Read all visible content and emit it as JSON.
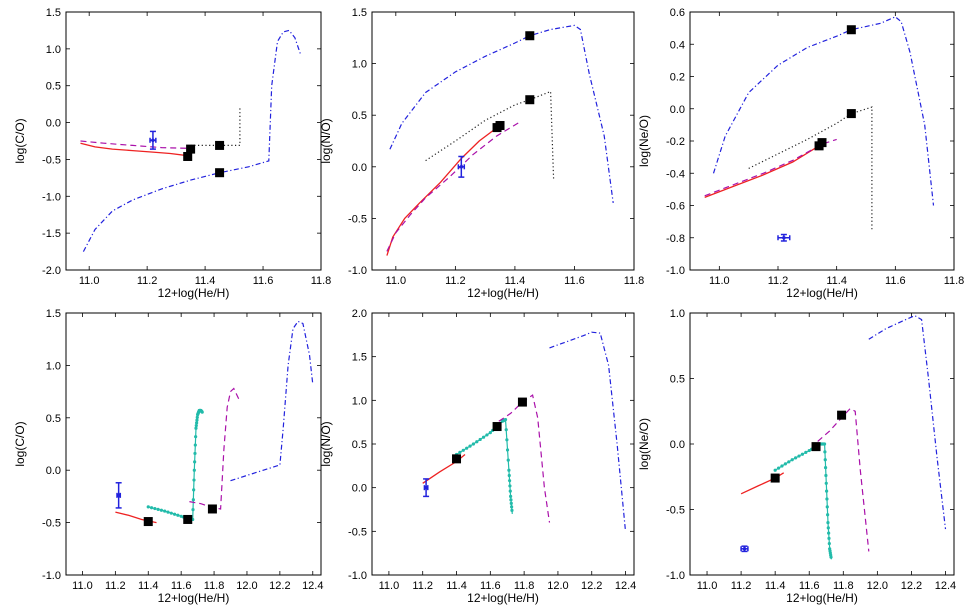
{
  "colors": {
    "solid": "#ee2222",
    "dashed": "#aa11aa",
    "dotted": "#222222",
    "dashdot": "#2222dd",
    "teal": "#22bbaa",
    "marker": "#000000",
    "obs": "#2222dd"
  },
  "chart_data": [
    {
      "type": "line",
      "xlabel": "12+log(He/H)",
      "ylabel": "log(C/O)",
      "xlim": [
        10.92,
        11.8
      ],
      "ylim": [
        -2.0,
        1.5
      ],
      "xticks": [
        "11.0",
        "11.2",
        "11.4",
        "11.6",
        "11.8"
      ],
      "yticks": [
        "-2.0",
        "-1.5",
        "-1.0",
        "-0.5",
        "0.0",
        "0.5",
        "1.0",
        "1.5"
      ],
      "series": [
        {
          "name": "solid",
          "style": "solid",
          "color": "#ee2222",
          "x": [
            10.97,
            11.02,
            11.08,
            11.15,
            11.22,
            11.28,
            11.34
          ],
          "y": [
            -0.28,
            -0.33,
            -0.36,
            -0.38,
            -0.4,
            -0.42,
            -0.45
          ]
        },
        {
          "name": "dashed",
          "style": "dashed",
          "color": "#aa11aa",
          "x": [
            10.97,
            11.05,
            11.15,
            11.25,
            11.35
          ],
          "y": [
            -0.25,
            -0.28,
            -0.31,
            -0.34,
            -0.35
          ]
        },
        {
          "name": "dotted",
          "style": "dotted",
          "color": "#222222",
          "x": [
            11.35,
            11.45,
            11.52,
            11.52,
            11.52
          ],
          "y": [
            -0.31,
            -0.31,
            -0.31,
            -0.05,
            0.2
          ]
        },
        {
          "name": "dashdot",
          "style": "dashdot",
          "color": "#2222dd",
          "x": [
            10.98,
            11.02,
            11.08,
            11.15,
            11.25,
            11.35,
            11.45,
            11.55,
            11.62,
            11.63,
            11.65,
            11.67,
            11.69,
            11.71,
            11.73
          ],
          "y": [
            -1.75,
            -1.45,
            -1.2,
            -1.05,
            -0.9,
            -0.78,
            -0.68,
            -0.6,
            -0.52,
            0.5,
            1.1,
            1.23,
            1.25,
            1.15,
            0.92
          ]
        }
      ],
      "markers": {
        "x": [
          11.34,
          11.35,
          11.45,
          11.45
        ],
        "y": [
          -0.46,
          -0.36,
          -0.31,
          -0.68
        ]
      },
      "observation": {
        "x": 11.22,
        "y": -0.24,
        "xerr": 0.01,
        "yerr": 0.12
      }
    },
    {
      "type": "line",
      "xlabel": "12+log(He/H)",
      "ylabel": "log(N/O)",
      "xlim": [
        10.92,
        11.8
      ],
      "ylim": [
        -1.0,
        1.5
      ],
      "xticks": [
        "11.0",
        "11.2",
        "11.4",
        "11.6",
        "11.8"
      ],
      "yticks": [
        "-1.0",
        "-0.5",
        "0.0",
        "0.5",
        "1.0",
        "1.5"
      ],
      "series": [
        {
          "name": "solid",
          "style": "solid",
          "color": "#ee2222",
          "x": [
            10.97,
            10.99,
            11.03,
            11.08,
            11.15,
            11.22,
            11.28,
            11.34
          ],
          "y": [
            -0.86,
            -0.68,
            -0.5,
            -0.35,
            -0.15,
            0.08,
            0.25,
            0.38
          ]
        },
        {
          "name": "dashed",
          "style": "dashed",
          "color": "#aa11aa",
          "x": [
            10.97,
            11.0,
            11.05,
            11.1,
            11.18,
            11.26,
            11.34,
            11.42
          ],
          "y": [
            -0.82,
            -0.64,
            -0.46,
            -0.3,
            -0.1,
            0.12,
            0.3,
            0.44
          ]
        },
        {
          "name": "dotted",
          "style": "dotted",
          "color": "#222222",
          "x": [
            11.1,
            11.2,
            11.3,
            11.4,
            11.45,
            11.52,
            11.53
          ],
          "y": [
            0.06,
            0.25,
            0.45,
            0.6,
            0.65,
            0.73,
            -0.12
          ]
        },
        {
          "name": "dashdot",
          "style": "dashdot",
          "color": "#2222dd",
          "x": [
            10.98,
            11.02,
            11.1,
            11.2,
            11.3,
            11.4,
            11.45,
            11.52,
            11.6,
            11.62,
            11.65,
            11.7,
            11.73
          ],
          "y": [
            0.17,
            0.42,
            0.72,
            0.92,
            1.07,
            1.2,
            1.27,
            1.33,
            1.37,
            1.33,
            0.9,
            0.3,
            -0.35
          ]
        }
      ],
      "markers": {
        "x": [
          11.34,
          11.35,
          11.45,
          11.45
        ],
        "y": [
          0.38,
          0.4,
          0.65,
          1.27
        ]
      },
      "observation": {
        "x": 11.22,
        "y": 0.0,
        "xerr": 0.01,
        "yerr": 0.1
      }
    },
    {
      "type": "line",
      "xlabel": "12+log(He/H)",
      "ylabel": "log(Ne/O)",
      "xlim": [
        10.9,
        11.8
      ],
      "ylim": [
        -1.0,
        0.6
      ],
      "xticks": [
        "11.0",
        "11.2",
        "11.4",
        "11.6",
        "11.8"
      ],
      "yticks": [
        "-1.0",
        "-0.8",
        "-0.6",
        "-0.4",
        "-0.2",
        "0.0",
        "0.2",
        "0.4",
        "0.6"
      ],
      "series": [
        {
          "name": "solid",
          "style": "solid",
          "color": "#ee2222",
          "x": [
            10.95,
            11.05,
            11.15,
            11.25,
            11.34
          ],
          "y": [
            -0.55,
            -0.48,
            -0.41,
            -0.33,
            -0.23
          ]
        },
        {
          "name": "dashed",
          "style": "dashed",
          "color": "#aa11aa",
          "x": [
            10.95,
            11.05,
            11.15,
            11.25,
            11.35,
            11.4
          ],
          "y": [
            -0.54,
            -0.47,
            -0.4,
            -0.32,
            -0.22,
            -0.19
          ]
        },
        {
          "name": "dotted",
          "style": "dotted",
          "color": "#222222",
          "x": [
            11.1,
            11.2,
            11.3,
            11.4,
            11.45,
            11.52,
            11.52
          ],
          "y": [
            -0.37,
            -0.28,
            -0.19,
            -0.09,
            -0.03,
            0.01,
            -0.76
          ]
        },
        {
          "name": "dashdot",
          "style": "dashdot",
          "color": "#2222dd",
          "x": [
            10.98,
            11.02,
            11.1,
            11.2,
            11.3,
            11.4,
            11.45,
            11.55,
            11.6,
            11.62,
            11.65,
            11.7,
            11.73
          ],
          "y": [
            -0.4,
            -0.17,
            0.1,
            0.27,
            0.38,
            0.45,
            0.49,
            0.53,
            0.57,
            0.54,
            0.35,
            -0.1,
            -0.6
          ]
        }
      ],
      "markers": {
        "x": [
          11.34,
          11.35,
          11.45,
          11.45
        ],
        "y": [
          -0.23,
          -0.21,
          -0.03,
          0.49
        ]
      },
      "observation": {
        "x": 11.22,
        "y": -0.8,
        "xerr": 0.02,
        "yerr": 0.02
      }
    },
    {
      "type": "line",
      "xlabel": "12+log(He/H)",
      "ylabel": "log(C/O)",
      "xlim": [
        10.9,
        12.45
      ],
      "ylim": [
        -1.0,
        1.5
      ],
      "xticks": [
        "11.0",
        "11.2",
        "11.4",
        "11.6",
        "11.8",
        "12.0",
        "12.2",
        "12.4"
      ],
      "yticks": [
        "-1.0",
        "-0.5",
        "0.0",
        "0.5",
        "1.0",
        "1.5"
      ],
      "series": [
        {
          "name": "solid",
          "style": "solid",
          "color": "#ee2222",
          "x": [
            11.2,
            11.28,
            11.36,
            11.45
          ],
          "y": [
            -0.4,
            -0.43,
            -0.47,
            -0.5
          ]
        },
        {
          "name": "teal",
          "style": "dotline",
          "color": "#22bbaa",
          "x": [
            11.4,
            11.5,
            11.6,
            11.67,
            11.68,
            11.69,
            11.7,
            11.71,
            11.72,
            11.73
          ],
          "y": [
            -0.35,
            -0.39,
            -0.44,
            -0.47,
            0.0,
            0.4,
            0.53,
            0.57,
            0.57,
            0.55
          ]
        },
        {
          "name": "dashed",
          "style": "dashed",
          "color": "#aa11aa",
          "x": [
            11.65,
            11.72,
            11.78,
            11.84,
            11.86,
            11.88,
            11.9,
            11.92,
            11.95
          ],
          "y": [
            -0.3,
            -0.32,
            -0.35,
            -0.37,
            0.2,
            0.6,
            0.75,
            0.78,
            0.68
          ]
        },
        {
          "name": "dashdot",
          "style": "dashdot",
          "color": "#2222dd",
          "x": [
            11.9,
            12.0,
            12.1,
            12.2,
            12.22,
            12.25,
            12.28,
            12.31,
            12.34,
            12.38,
            12.4
          ],
          "y": [
            -0.1,
            -0.05,
            0.0,
            0.05,
            0.4,
            1.0,
            1.35,
            1.42,
            1.4,
            1.1,
            0.82
          ]
        }
      ],
      "markers": {
        "x": [
          11.4,
          11.64,
          11.79
        ],
        "y": [
          -0.49,
          -0.47,
          -0.37
        ]
      },
      "observation": {
        "x": 11.22,
        "y": -0.24,
        "xerr": 0.01,
        "yerr": 0.12
      }
    },
    {
      "type": "line",
      "xlabel": "12+log(He/H)",
      "ylabel": "log(N/O)",
      "xlim": [
        10.9,
        12.45
      ],
      "ylim": [
        -1.0,
        2.0
      ],
      "xticks": [
        "11.0",
        "11.2",
        "11.4",
        "11.6",
        "11.8",
        "12.0",
        "12.2",
        "12.4"
      ],
      "yticks": [
        "-1.0",
        "-0.5",
        "0.0",
        "0.5",
        "1.0",
        "1.5",
        "2.0"
      ],
      "series": [
        {
          "name": "solid",
          "style": "solid",
          "color": "#ee2222",
          "x": [
            11.2,
            11.3,
            11.4,
            11.45
          ],
          "y": [
            0.05,
            0.18,
            0.3,
            0.38
          ]
        },
        {
          "name": "teal",
          "style": "dotline",
          "color": "#22bbaa",
          "x": [
            11.4,
            11.5,
            11.6,
            11.67,
            11.69,
            11.71,
            11.72,
            11.73
          ],
          "y": [
            0.38,
            0.5,
            0.63,
            0.76,
            0.78,
            0.2,
            -0.1,
            -0.3
          ]
        },
        {
          "name": "dashed",
          "style": "dashed",
          "color": "#aa11aa",
          "x": [
            11.65,
            11.72,
            11.79,
            11.85,
            11.88,
            11.92,
            11.95
          ],
          "y": [
            0.76,
            0.85,
            0.98,
            1.06,
            0.8,
            0.0,
            -0.4
          ]
        },
        {
          "name": "dashdot",
          "style": "dashdot",
          "color": "#2222dd",
          "x": [
            11.95,
            12.05,
            12.15,
            12.2,
            12.25,
            12.3,
            12.35,
            12.4
          ],
          "y": [
            1.6,
            1.67,
            1.74,
            1.78,
            1.77,
            1.4,
            0.5,
            -0.5
          ]
        }
      ],
      "markers": {
        "x": [
          11.4,
          11.64,
          11.79
        ],
        "y": [
          0.33,
          0.7,
          0.98
        ]
      },
      "observation": {
        "x": 11.22,
        "y": 0.0,
        "xerr": 0.01,
        "yerr": 0.1
      }
    },
    {
      "type": "line",
      "xlabel": "12+log(He/H)",
      "ylabel": "log(Ne/O)",
      "xlim": [
        10.9,
        12.45
      ],
      "ylim": [
        -1.0,
        1.0
      ],
      "xticks": [
        "11.0",
        "11.2",
        "11.4",
        "11.6",
        "11.8",
        "12.0",
        "12.2",
        "12.4"
      ],
      "yticks": [
        "-1.0",
        "-0.5",
        "0.0",
        "0.5",
        "1.0"
      ],
      "series": [
        {
          "name": "solid",
          "style": "solid",
          "color": "#ee2222",
          "x": [
            11.2,
            11.3,
            11.4,
            11.45
          ],
          "y": [
            -0.38,
            -0.32,
            -0.26,
            -0.22
          ]
        },
        {
          "name": "teal",
          "style": "dotline",
          "color": "#22bbaa",
          "x": [
            11.4,
            11.5,
            11.6,
            11.67,
            11.69,
            11.7,
            11.71,
            11.72,
            11.73
          ],
          "y": [
            -0.2,
            -0.12,
            -0.05,
            0.0,
            0.0,
            -0.3,
            -0.6,
            -0.8,
            -0.88
          ]
        },
        {
          "name": "dashed",
          "style": "dashed",
          "color": "#aa11aa",
          "x": [
            11.65,
            11.72,
            11.79,
            11.84,
            11.87,
            11.9,
            11.95
          ],
          "y": [
            0.02,
            0.1,
            0.2,
            0.27,
            0.25,
            -0.2,
            -0.82
          ]
        },
        {
          "name": "dashdot",
          "style": "dashdot",
          "color": "#2222dd",
          "x": [
            11.95,
            12.05,
            12.15,
            12.22,
            12.26,
            12.3,
            12.35,
            12.4
          ],
          "y": [
            0.8,
            0.88,
            0.94,
            0.98,
            0.95,
            0.5,
            -0.1,
            -0.65
          ]
        }
      ],
      "markers": {
        "x": [
          11.4,
          11.64,
          11.79
        ],
        "y": [
          -0.26,
          -0.02,
          0.22
        ]
      },
      "observation": {
        "x": 11.22,
        "y": -0.8,
        "xerr": 0.02,
        "yerr": 0.02
      }
    }
  ]
}
